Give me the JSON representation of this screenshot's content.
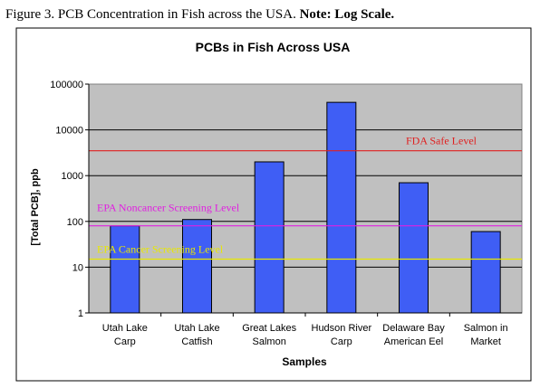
{
  "caption": {
    "text": "Figure 3. PCB Concentration in Fish across the USA.",
    "note": "Note: Log Scale."
  },
  "chart_data": {
    "type": "bar",
    "title": "PCBs in Fish Across USA",
    "xlabel": "Samples",
    "ylabel": "[Total PCB], ppb",
    "yscale": "log",
    "ylim": [
      1,
      100000
    ],
    "yticks": [
      "1",
      "10",
      "100",
      "1000",
      "10000",
      "100000"
    ],
    "categories": [
      [
        "Utah Lake",
        "Carp"
      ],
      [
        "Utah Lake",
        "Catfish"
      ],
      [
        "Great Lakes",
        "Salmon"
      ],
      [
        "Hudson River",
        "Carp"
      ],
      [
        "Delaware Bay",
        "American Eel"
      ],
      [
        "Salmon in",
        "Market"
      ]
    ],
    "values": [
      80,
      110,
      2000,
      40000,
      700,
      60
    ],
    "bar_color": "#3f5ef5",
    "plot_background": "#c0c0c0",
    "grid": true,
    "reference_lines": [
      {
        "label": "FDA Safe Level",
        "value": 3500,
        "color": "#e02020"
      },
      {
        "label": "EPA Noncancer Screening Level",
        "value": 80,
        "color": "#e020e0"
      },
      {
        "label": "EPA Cancer Screening Level",
        "value": 15,
        "color": "#e8e800"
      }
    ]
  }
}
